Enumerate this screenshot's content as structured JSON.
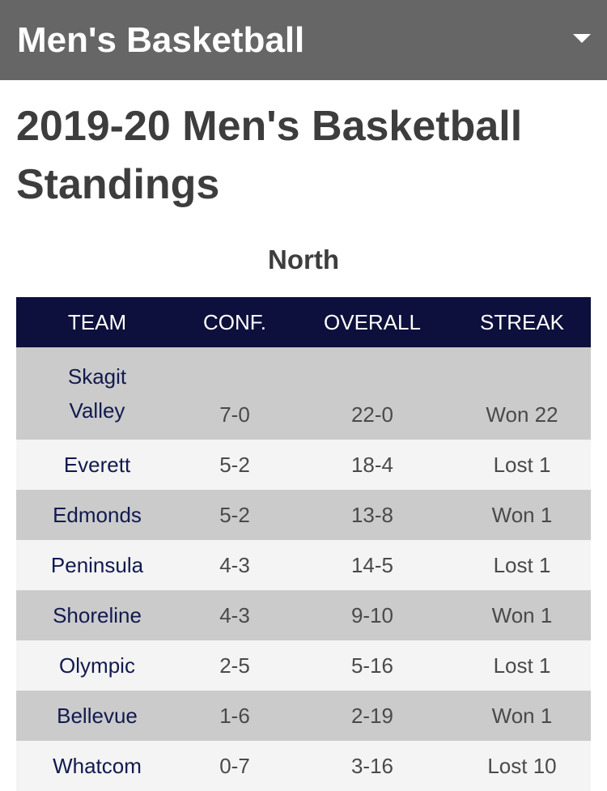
{
  "header": {
    "title": "Men's Basketball",
    "menu_icon": "caret-down-icon"
  },
  "page": {
    "title": "2019-20 Men's Basketball Standings",
    "division": "North"
  },
  "table": {
    "columns": [
      "TEAM",
      "CONF.",
      "OVERALL",
      "STREAK"
    ],
    "rows": [
      {
        "team": "Skagit Valley",
        "conf": "7-0",
        "overall": "22-0",
        "streak": "Won 22"
      },
      {
        "team": "Everett",
        "conf": "5-2",
        "overall": "18-4",
        "streak": "Lost 1"
      },
      {
        "team": "Edmonds",
        "conf": "5-2",
        "overall": "13-8",
        "streak": "Won 1"
      },
      {
        "team": "Peninsula",
        "conf": "4-3",
        "overall": "14-5",
        "streak": "Lost 1"
      },
      {
        "team": "Shoreline",
        "conf": "4-3",
        "overall": "9-10",
        "streak": "Won 1"
      },
      {
        "team": "Olympic",
        "conf": "2-5",
        "overall": "5-16",
        "streak": "Lost 1"
      },
      {
        "team": "Bellevue",
        "conf": "1-6",
        "overall": "2-19",
        "streak": "Won 1"
      },
      {
        "team": "Whatcom",
        "conf": "0-7",
        "overall": "3-16",
        "streak": "Lost 10"
      }
    ]
  },
  "colors": {
    "header_bg": "#666666",
    "table_header_bg": "#0d0f3c",
    "row_odd": "#cbcbcb",
    "row_even": "#f4f4f4",
    "team_text": "#121a4e"
  }
}
